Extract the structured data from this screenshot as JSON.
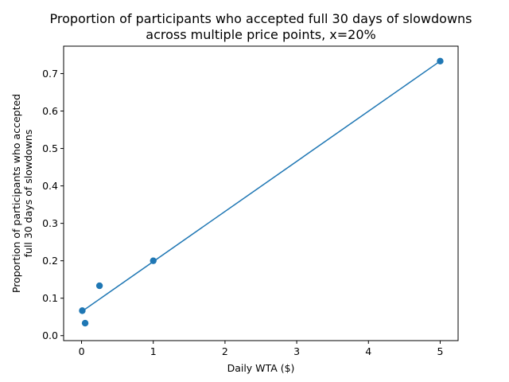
{
  "chart_data": {
    "type": "scatter",
    "title": "Proportion of participants who accepted full 30 days of slowdowns",
    "subtitle": "across multiple price points, x=20%",
    "xlabel": "Daily WTA ($)",
    "ylabel": "Proportion of participants who accepted",
    "ylabel2": "full 30 days of slowdowns",
    "xlim": [
      -0.25,
      5.25
    ],
    "ylim": [
      -0.0133,
      0.7733
    ],
    "x_ticks": [
      0,
      1,
      2,
      3,
      4,
      5
    ],
    "x_tick_labels": [
      "0",
      "1",
      "2",
      "3",
      "4",
      "5"
    ],
    "y_ticks": [
      0.0,
      0.1,
      0.2,
      0.3,
      0.4,
      0.5,
      0.6,
      0.7
    ],
    "y_tick_labels": [
      "0.0",
      "0.1",
      "0.2",
      "0.3",
      "0.4",
      "0.5",
      "0.6",
      "0.7"
    ],
    "grid": false,
    "series": [
      {
        "kind": "scatter",
        "color": "#1f77b4",
        "x": [
          0.01,
          0.05,
          0.25,
          1,
          5
        ],
        "y": [
          0.0667,
          0.0333,
          0.1333,
          0.2,
          0.7333
        ]
      },
      {
        "kind": "line",
        "color": "#1f77b4",
        "x": [
          0,
          5
        ],
        "y": [
          0.064,
          0.7333
        ]
      }
    ]
  }
}
